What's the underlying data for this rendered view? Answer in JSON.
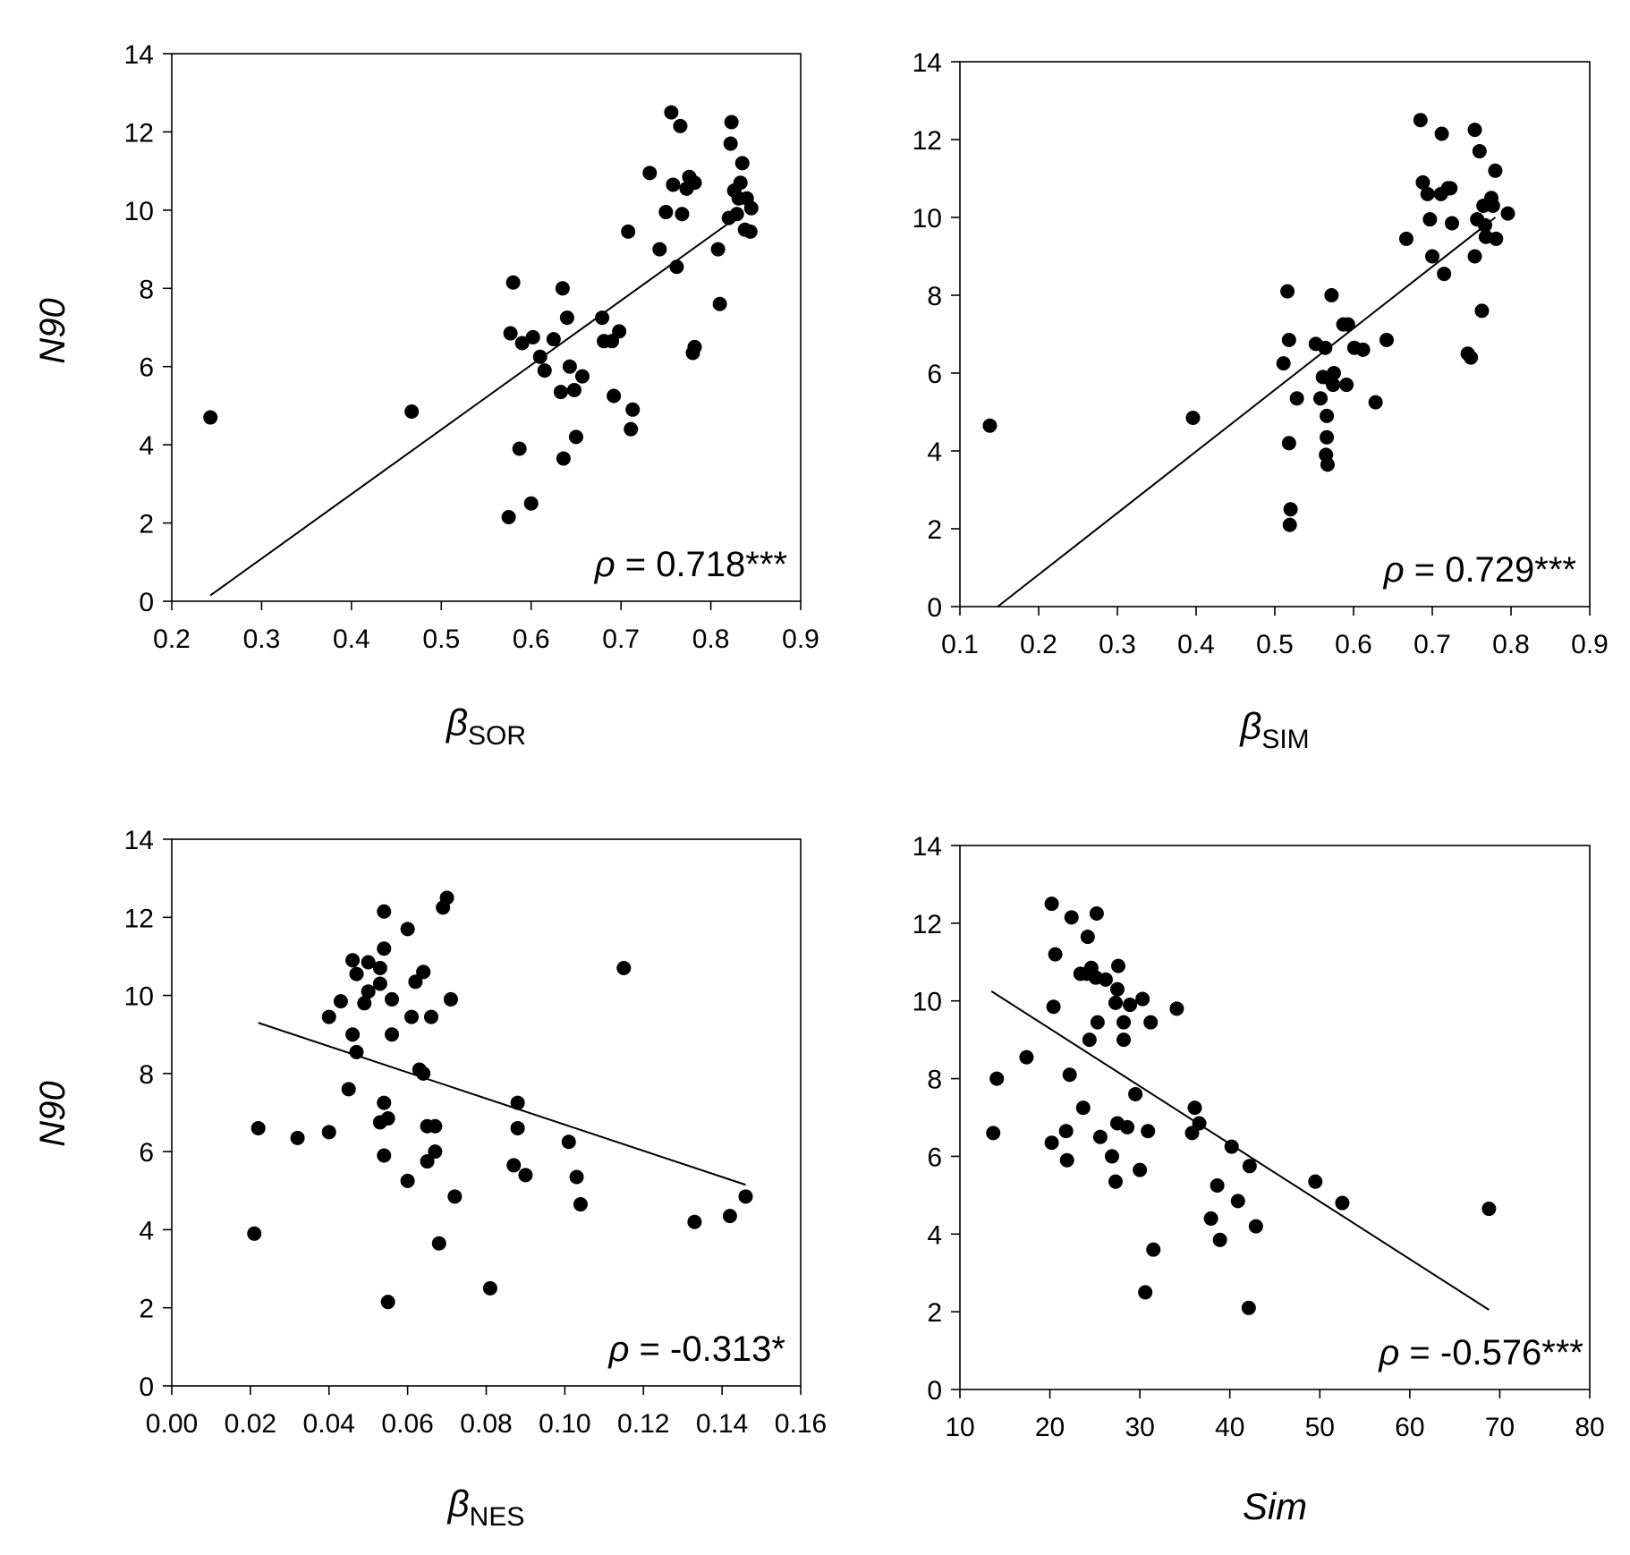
{
  "chart_data": [
    {
      "type": "scatter",
      "id": "a",
      "xlabel": "β",
      "xlabel_sub": "SOR",
      "xlabel_italic": false,
      "ylabel": "N90",
      "xlim": [
        0.2,
        0.9
      ],
      "ylim": [
        0,
        14
      ],
      "xticks": [
        "0.2",
        "0.3",
        "0.4",
        "0.5",
        "0.6",
        "0.7",
        "0.8",
        "0.9"
      ],
      "yticks": [
        "0",
        "2",
        "4",
        "6",
        "8",
        "10",
        "12",
        "14"
      ],
      "annotation_symbol": "ρ",
      "annotation_value": "= 0.718***",
      "trendline": [
        [
          0.243,
          0.15
        ],
        [
          0.828,
          9.8
        ]
      ],
      "points": [
        [
          0.243,
          4.7
        ],
        [
          0.467,
          4.85
        ],
        [
          0.575,
          2.15
        ],
        [
          0.577,
          6.85
        ],
        [
          0.58,
          8.15
        ],
        [
          0.587,
          3.9
        ],
        [
          0.59,
          6.6
        ],
        [
          0.6,
          2.5
        ],
        [
          0.602,
          6.75
        ],
        [
          0.61,
          6.25
        ],
        [
          0.615,
          5.9
        ],
        [
          0.625,
          6.7
        ],
        [
          0.633,
          5.35
        ],
        [
          0.635,
          8.0
        ],
        [
          0.636,
          3.65
        ],
        [
          0.64,
          7.25
        ],
        [
          0.643,
          6.0
        ],
        [
          0.648,
          5.4
        ],
        [
          0.65,
          4.2
        ],
        [
          0.657,
          5.75
        ],
        [
          0.679,
          7.25
        ],
        [
          0.681,
          6.65
        ],
        [
          0.69,
          6.65
        ],
        [
          0.692,
          5.25
        ],
        [
          0.698,
          6.9
        ],
        [
          0.708,
          9.45
        ],
        [
          0.711,
          4.4
        ],
        [
          0.713,
          4.9
        ],
        [
          0.732,
          10.95
        ],
        [
          0.743,
          9.0
        ],
        [
          0.75,
          9.95
        ],
        [
          0.756,
          12.5
        ],
        [
          0.758,
          10.65
        ],
        [
          0.762,
          8.55
        ],
        [
          0.766,
          12.15
        ],
        [
          0.768,
          9.9
        ],
        [
          0.773,
          10.55
        ],
        [
          0.776,
          10.85
        ],
        [
          0.782,
          10.7
        ],
        [
          0.78,
          6.35
        ],
        [
          0.782,
          6.5
        ],
        [
          0.808,
          9.0
        ],
        [
          0.81,
          7.6
        ],
        [
          0.82,
          9.8
        ],
        [
          0.822,
          11.7
        ],
        [
          0.823,
          12.25
        ],
        [
          0.826,
          10.5
        ],
        [
          0.829,
          9.9
        ],
        [
          0.831,
          10.3
        ],
        [
          0.833,
          10.7
        ],
        [
          0.835,
          11.2
        ],
        [
          0.838,
          9.5
        ],
        [
          0.84,
          10.3
        ],
        [
          0.844,
          9.45
        ],
        [
          0.845,
          10.05
        ]
      ]
    },
    {
      "type": "scatter",
      "id": "b",
      "xlabel": "β",
      "xlabel_sub": "SIM",
      "xlabel_italic": false,
      "ylabel": "",
      "xlim": [
        0.1,
        0.9
      ],
      "ylim": [
        0,
        14
      ],
      "xticks": [
        "0.1",
        "0.2",
        "0.3",
        "0.4",
        "0.5",
        "0.6",
        "0.7",
        "0.8",
        "0.9"
      ],
      "yticks": [
        "0",
        "2",
        "4",
        "6",
        "8",
        "10",
        "12",
        "14"
      ],
      "annotation_symbol": "ρ",
      "annotation_value": "= 0.729***",
      "trendline": [
        [
          0.148,
          0.0
        ],
        [
          0.78,
          10.0
        ]
      ],
      "points": [
        [
          0.138,
          4.65
        ],
        [
          0.396,
          4.85
        ],
        [
          0.511,
          6.25
        ],
        [
          0.516,
          8.1
        ],
        [
          0.518,
          6.85
        ],
        [
          0.518,
          4.2
        ],
        [
          0.519,
          2.1
        ],
        [
          0.52,
          2.5
        ],
        [
          0.528,
          5.35
        ],
        [
          0.552,
          6.75
        ],
        [
          0.558,
          5.35
        ],
        [
          0.561,
          5.9
        ],
        [
          0.564,
          6.65
        ],
        [
          0.565,
          3.9
        ],
        [
          0.566,
          4.35
        ],
        [
          0.566,
          4.9
        ],
        [
          0.567,
          3.65
        ],
        [
          0.57,
          5.85
        ],
        [
          0.572,
          8.0
        ],
        [
          0.574,
          5.7
        ],
        [
          0.575,
          6.0
        ],
        [
          0.587,
          7.25
        ],
        [
          0.591,
          5.7
        ],
        [
          0.593,
          7.25
        ],
        [
          0.601,
          6.65
        ],
        [
          0.612,
          6.6
        ],
        [
          0.628,
          5.25
        ],
        [
          0.642,
          6.85
        ],
        [
          0.667,
          9.45
        ],
        [
          0.685,
          12.5
        ],
        [
          0.688,
          10.9
        ],
        [
          0.694,
          10.6
        ],
        [
          0.697,
          9.95
        ],
        [
          0.7,
          9.0
        ],
        [
          0.711,
          10.6
        ],
        [
          0.712,
          12.15
        ],
        [
          0.715,
          8.55
        ],
        [
          0.72,
          10.75
        ],
        [
          0.723,
          10.75
        ],
        [
          0.725,
          9.85
        ],
        [
          0.745,
          6.5
        ],
        [
          0.749,
          6.4
        ],
        [
          0.754,
          12.25
        ],
        [
          0.754,
          9.0
        ],
        [
          0.757,
          9.95
        ],
        [
          0.76,
          11.7
        ],
        [
          0.763,
          7.6
        ],
        [
          0.765,
          10.3
        ],
        [
          0.767,
          9.8
        ],
        [
          0.768,
          9.5
        ],
        [
          0.775,
          10.5
        ],
        [
          0.777,
          10.3
        ],
        [
          0.78,
          11.2
        ],
        [
          0.781,
          9.45
        ],
        [
          0.796,
          10.1
        ]
      ]
    },
    {
      "type": "scatter",
      "id": "c",
      "xlabel": "β",
      "xlabel_sub": "NES",
      "xlabel_italic": false,
      "ylabel": "N90",
      "xlim": [
        0.0,
        0.16
      ],
      "ylim": [
        0,
        14
      ],
      "xticks": [
        "0.00",
        "0.02",
        "0.04",
        "0.06",
        "0.08",
        "0.10",
        "0.12",
        "0.14",
        "0.16"
      ],
      "yticks": [
        "0",
        "2",
        "4",
        "6",
        "8",
        "10",
        "12",
        "14"
      ],
      "annotation_symbol": "ρ",
      "annotation_value": "= -0.313*",
      "trendline": [
        [
          0.022,
          9.3
        ],
        [
          0.146,
          5.15
        ]
      ],
      "points": [
        [
          0.021,
          3.9
        ],
        [
          0.022,
          6.6
        ],
        [
          0.032,
          6.35
        ],
        [
          0.04,
          6.5
        ],
        [
          0.04,
          9.45
        ],
        [
          0.043,
          9.85
        ],
        [
          0.045,
          7.6
        ],
        [
          0.046,
          9.0
        ],
        [
          0.046,
          10.9
        ],
        [
          0.047,
          8.55
        ],
        [
          0.047,
          10.55
        ],
        [
          0.049,
          9.8
        ],
        [
          0.05,
          10.1
        ],
        [
          0.05,
          10.85
        ],
        [
          0.053,
          6.75
        ],
        [
          0.053,
          10.7
        ],
        [
          0.053,
          10.3
        ],
        [
          0.054,
          12.15
        ],
        [
          0.054,
          11.2
        ],
        [
          0.054,
          7.25
        ],
        [
          0.054,
          5.9
        ],
        [
          0.055,
          6.85
        ],
        [
          0.055,
          2.15
        ],
        [
          0.056,
          9.9
        ],
        [
          0.056,
          9.0
        ],
        [
          0.06,
          11.7
        ],
        [
          0.06,
          5.25
        ],
        [
          0.061,
          9.45
        ],
        [
          0.062,
          10.35
        ],
        [
          0.063,
          8.1
        ],
        [
          0.064,
          8.0
        ],
        [
          0.064,
          10.6
        ],
        [
          0.064,
          10.6
        ],
        [
          0.065,
          6.65
        ],
        [
          0.065,
          5.75
        ],
        [
          0.066,
          9.45
        ],
        [
          0.067,
          6.0
        ],
        [
          0.067,
          6.65
        ],
        [
          0.068,
          3.65
        ],
        [
          0.069,
          12.25
        ],
        [
          0.07,
          12.5
        ],
        [
          0.071,
          9.9
        ],
        [
          0.072,
          4.85
        ],
        [
          0.081,
          2.5
        ],
        [
          0.087,
          5.65
        ],
        [
          0.088,
          7.25
        ],
        [
          0.088,
          6.6
        ],
        [
          0.09,
          5.4
        ],
        [
          0.101,
          6.25
        ],
        [
          0.103,
          5.35
        ],
        [
          0.104,
          4.65
        ],
        [
          0.115,
          10.7
        ],
        [
          0.133,
          4.2
        ],
        [
          0.142,
          4.35
        ],
        [
          0.146,
          4.85
        ]
      ]
    },
    {
      "type": "scatter",
      "id": "d",
      "xlabel": "Sim",
      "xlabel_sub": "",
      "xlabel_italic": true,
      "ylabel": "",
      "xlim": [
        10,
        80
      ],
      "ylim": [
        0,
        14
      ],
      "xticks": [
        "10",
        "20",
        "30",
        "40",
        "50",
        "60",
        "70",
        "80"
      ],
      "yticks": [
        "0",
        "2",
        "4",
        "6",
        "8",
        "10",
        "12",
        "14"
      ],
      "annotation_symbol": "ρ",
      "annotation_value": "= -0.576***",
      "trendline": [
        [
          13.5,
          10.25
        ],
        [
          68.8,
          2.05
        ]
      ],
      "points": [
        [
          13.7,
          6.6
        ],
        [
          14.1,
          8.0
        ],
        [
          17.4,
          8.55
        ],
        [
          20.2,
          6.35
        ],
        [
          20.2,
          12.5
        ],
        [
          20.4,
          9.85
        ],
        [
          20.6,
          11.2
        ],
        [
          21.8,
          6.65
        ],
        [
          21.9,
          5.9
        ],
        [
          22.2,
          8.1
        ],
        [
          22.4,
          12.15
        ],
        [
          23.4,
          10.7
        ],
        [
          23.7,
          7.25
        ],
        [
          24.1,
          10.7
        ],
        [
          24.2,
          11.65
        ],
        [
          24.4,
          9.0
        ],
        [
          24.6,
          10.85
        ],
        [
          25.1,
          10.6
        ],
        [
          25.2,
          12.25
        ],
        [
          25.3,
          9.45
        ],
        [
          25.6,
          6.5
        ],
        [
          26.2,
          10.55
        ],
        [
          26.9,
          6.0
        ],
        [
          27.3,
          5.35
        ],
        [
          27.3,
          9.95
        ],
        [
          27.5,
          6.85
        ],
        [
          27.5,
          10.3
        ],
        [
          27.6,
          10.9
        ],
        [
          28.2,
          9.45
        ],
        [
          28.2,
          9.0
        ],
        [
          28.6,
          6.75
        ],
        [
          28.9,
          9.9
        ],
        [
          29.5,
          7.6
        ],
        [
          30.0,
          5.65
        ],
        [
          30.3,
          10.05
        ],
        [
          30.6,
          2.5
        ],
        [
          30.9,
          6.65
        ],
        [
          31.2,
          9.45
        ],
        [
          31.5,
          3.6
        ],
        [
          34.1,
          9.8
        ],
        [
          35.8,
          6.6
        ],
        [
          36.1,
          7.25
        ],
        [
          36.6,
          6.85
        ],
        [
          37.9,
          4.4
        ],
        [
          38.6,
          5.25
        ],
        [
          38.9,
          3.85
        ],
        [
          40.2,
          6.25
        ],
        [
          40.9,
          4.85
        ],
        [
          42.1,
          2.1
        ],
        [
          42.2,
          5.75
        ],
        [
          42.9,
          4.2
        ],
        [
          49.5,
          5.35
        ],
        [
          52.5,
          4.8
        ],
        [
          68.8,
          4.65
        ]
      ]
    }
  ]
}
